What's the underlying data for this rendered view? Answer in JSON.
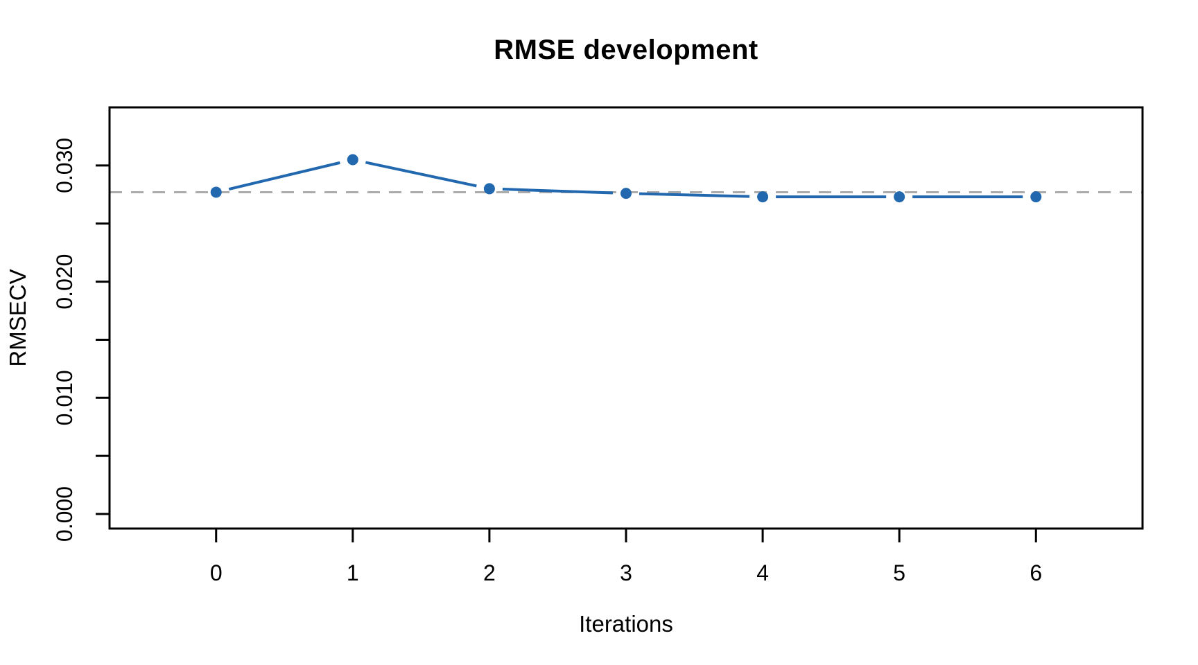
{
  "chart_data": {
    "type": "line",
    "title": "RMSE development",
    "xlabel": "Iterations",
    "ylabel": "RMSECV",
    "x": [
      0,
      1,
      2,
      3,
      4,
      5,
      6
    ],
    "series": [
      {
        "name": "RMSECV",
        "values": [
          0.0277,
          0.0305,
          0.028,
          0.0276,
          0.0273,
          0.0273,
          0.0273
        ]
      }
    ],
    "reference_line": {
      "value": 0.0277,
      "style": "dashed",
      "color": "#ABABAB"
    },
    "x_ticks": [
      0,
      1,
      2,
      3,
      4,
      5,
      6
    ],
    "x_tick_labels": [
      "0",
      "1",
      "2",
      "3",
      "4",
      "5",
      "6"
    ],
    "y_ticks": [
      0.0,
      0.005,
      0.01,
      0.015,
      0.02,
      0.025,
      0.03
    ],
    "y_tick_labels": [
      "0.000",
      "",
      "0.010",
      "",
      "0.020",
      "",
      "0.030"
    ],
    "xlim": [
      -0.78,
      6.78
    ],
    "ylim": [
      -0.00125,
      0.035
    ],
    "grid": false,
    "legend_position": "none",
    "marker": "filled-circle",
    "line_style": "segments-with-gaps-at-markers",
    "line_color": "#2268AE",
    "point_color": "#2268AE",
    "axis_color": "#000000",
    "background": "#FFFFFF"
  }
}
